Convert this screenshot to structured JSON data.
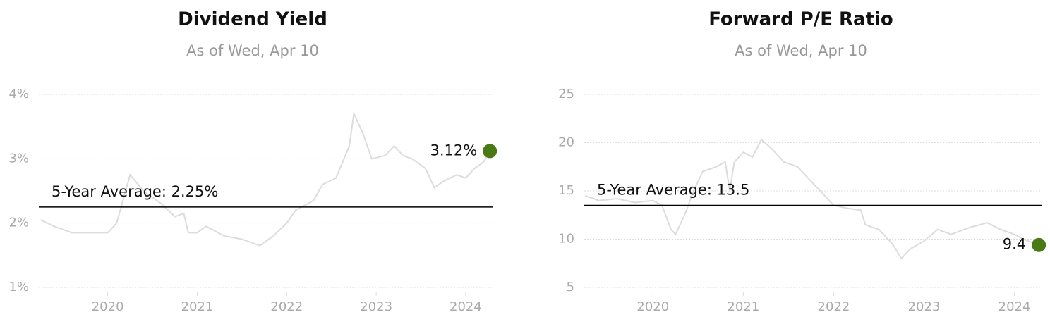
{
  "chart_data": [
    {
      "type": "line",
      "title": "Dividend Yield",
      "subtitle": "As of Wed, Apr 10",
      "x": [
        2019.25,
        2019.4,
        2019.6,
        2019.8,
        2020.0,
        2020.1,
        2020.2,
        2020.25,
        2020.4,
        2020.6,
        2020.75,
        2020.85,
        2020.9,
        2021.0,
        2021.1,
        2021.3,
        2021.5,
        2021.7,
        2021.85,
        2022.0,
        2022.1,
        2022.3,
        2022.4,
        2022.55,
        2022.7,
        2022.75,
        2022.85,
        2022.95,
        2023.1,
        2023.2,
        2023.3,
        2023.4,
        2023.55,
        2023.65,
        2023.75,
        2023.9,
        2024.0,
        2024.1,
        2024.2,
        2024.27
      ],
      "series": [
        {
          "color": "#dcdcdc",
          "values": [
            2.05,
            1.95,
            1.85,
            1.85,
            1.85,
            2.0,
            2.5,
            2.75,
            2.5,
            2.3,
            2.1,
            2.15,
            1.85,
            1.85,
            1.95,
            1.8,
            1.75,
            1.65,
            1.8,
            2.0,
            2.2,
            2.35,
            2.6,
            2.7,
            3.2,
            3.7,
            3.4,
            3.0,
            3.05,
            3.2,
            3.05,
            3.0,
            2.85,
            2.55,
            2.65,
            2.75,
            2.7,
            2.85,
            2.95,
            3.12
          ]
        }
      ],
      "latest": {
        "x": 2024.27,
        "value": 3.12,
        "label": "3.12%",
        "color": "#4a7a14"
      },
      "average": {
        "value": 2.25,
        "label": "5-Year Average: 2.25%"
      },
      "xlim": [
        2019.23,
        2024.3
      ],
      "xticks": [
        2020,
        2021,
        2022,
        2023,
        2024
      ],
      "ylim": [
        1,
        4
      ],
      "yticks": [
        {
          "value": 1,
          "label": "1%"
        },
        {
          "value": 2,
          "label": "2%"
        },
        {
          "value": 3,
          "label": "3%"
        },
        {
          "value": 4,
          "label": "4%"
        }
      ],
      "grid": true
    },
    {
      "type": "line",
      "title": "Forward P/E Ratio",
      "subtitle": "As of Wed, Apr 10",
      "x": [
        2019.25,
        2019.4,
        2019.6,
        2019.8,
        2020.0,
        2020.1,
        2020.2,
        2020.25,
        2020.35,
        2020.45,
        2020.55,
        2020.7,
        2020.8,
        2020.85,
        2020.9,
        2021.0,
        2021.1,
        2021.2,
        2021.3,
        2021.45,
        2021.6,
        2021.75,
        2021.9,
        2022.0,
        2022.15,
        2022.3,
        2022.35,
        2022.5,
        2022.65,
        2022.75,
        2022.85,
        2023.0,
        2023.15,
        2023.3,
        2023.5,
        2023.7,
        2023.85,
        2024.0,
        2024.1,
        2024.27
      ],
      "series": [
        {
          "color": "#dcdcdc",
          "values": [
            14.5,
            14,
            14.2,
            13.8,
            14,
            13.5,
            11,
            10.5,
            12.5,
            15,
            17,
            17.5,
            18,
            15,
            18,
            19,
            18.5,
            20.3,
            19.5,
            18,
            17.5,
            16,
            14.5,
            13.5,
            13.2,
            13,
            11.5,
            11,
            9.5,
            8,
            9,
            9.8,
            11,
            10.5,
            11.2,
            11.7,
            11,
            10.5,
            10,
            9.4
          ]
        }
      ],
      "latest": {
        "x": 2024.27,
        "value": 9.4,
        "label": "9.4",
        "color": "#4a7a14"
      },
      "average": {
        "value": 13.5,
        "label": "5-Year Average: 13.5"
      },
      "xlim": [
        2019.24,
        2024.3
      ],
      "xticks": [
        2020,
        2021,
        2022,
        2023,
        2024
      ],
      "ylim": [
        5,
        25
      ],
      "yticks": [
        5,
        10,
        15,
        20,
        25
      ],
      "grid": true
    }
  ]
}
